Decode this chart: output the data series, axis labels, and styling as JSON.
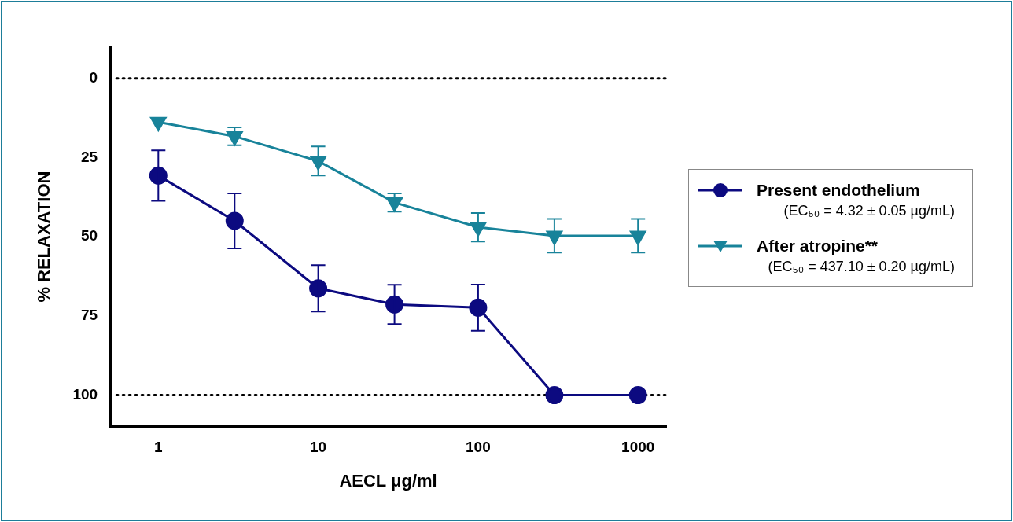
{
  "chart_data": {
    "type": "line",
    "xlabel": "AECL μg/ml",
    "ylabel": "% RELAXATION",
    "log": "x",
    "x": [
      1,
      3,
      10,
      30,
      100,
      300,
      1000
    ],
    "xlim": [
      0.5,
      1500
    ],
    "xticks": [
      1,
      10,
      100,
      1000
    ],
    "ylim": [
      110,
      -10
    ],
    "yticks": [
      0,
      25,
      50,
      75,
      100
    ],
    "grid": false,
    "legend": "right",
    "series": [
      {
        "name": "Present endothelium",
        "color": "#0c0a80",
        "marker": "circle",
        "values": [
          30.7,
          45,
          66.3,
          71.4,
          72.4,
          100,
          100
        ],
        "errors": [
          8,
          8.7,
          7.3,
          6.2,
          7.3,
          null,
          null
        ]
      },
      {
        "name": "After atropine**",
        "color": "#18839a",
        "marker": "triangle",
        "values": [
          13.8,
          18.3,
          26.1,
          39.2,
          47,
          49.7,
          49.7
        ],
        "errors": [
          null,
          2.8,
          4.6,
          2.9,
          4.5,
          5.3,
          5.3
        ]
      }
    ],
    "annotations": [
      "(EC₅₀ = 4.32 ± 0.05 µg/mL)",
      "(EC₅₀ = 437.10 ± 0.20 µg/mL)"
    ],
    "ref_lines": [
      {
        "axis": "y",
        "value": 0,
        "color": "#000000",
        "line_style": "dotted"
      },
      {
        "axis": "y",
        "value": 100,
        "color": "#000000",
        "line_style": "dotted"
      }
    ]
  }
}
